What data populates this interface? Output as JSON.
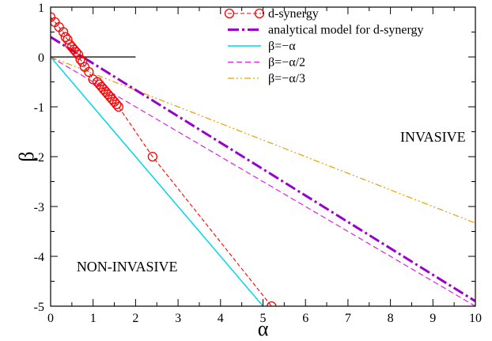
{
  "chart_data": {
    "type": "line",
    "xlabel": "α",
    "ylabel": "β",
    "xlim": [
      0,
      10
    ],
    "ylim": [
      -5,
      1
    ],
    "x_ticks": [
      0,
      1,
      2,
      3,
      4,
      5,
      6,
      7,
      8,
      9,
      10
    ],
    "y_ticks": [
      1,
      0,
      -1,
      -2,
      -3,
      -4,
      -5
    ],
    "grid": false,
    "legend_position": "top-right",
    "annotations": [
      {
        "text": "INVASIVE",
        "x": 9.0,
        "y": -1.7
      },
      {
        "text": "NON-INVASIVE",
        "x": 1.8,
        "y": -4.3
      }
    ],
    "reference_segment": {
      "x": [
        0,
        2
      ],
      "y": [
        0,
        0
      ],
      "color": "#000000"
    },
    "series": [
      {
        "name": "d-synergy",
        "kind": "markers-dashed",
        "color": "#ff0000",
        "x": [
          0.0,
          0.1,
          0.2,
          0.3,
          0.35,
          0.4,
          0.45,
          0.5,
          0.55,
          0.6,
          0.65,
          0.7,
          0.75,
          0.8,
          0.9,
          1.0,
          1.1,
          1.15,
          1.2,
          1.25,
          1.3,
          1.35,
          1.4,
          1.45,
          1.5,
          1.55,
          1.6,
          2.4,
          5.2
        ],
        "y": [
          0.8,
          0.7,
          0.6,
          0.5,
          0.4,
          0.35,
          0.25,
          0.2,
          0.15,
          0.1,
          0.05,
          -0.05,
          -0.1,
          -0.2,
          -0.3,
          -0.45,
          -0.5,
          -0.55,
          -0.6,
          -0.65,
          -0.7,
          -0.75,
          -0.8,
          -0.85,
          -0.9,
          -0.95,
          -1.0,
          -2.0,
          -5.0
        ]
      },
      {
        "name": "analytical model for d-synergy",
        "kind": "dash-dot-thick",
        "color": "#9900cc",
        "x": [
          0,
          10
        ],
        "y": [
          0.4,
          -4.9
        ]
      },
      {
        "name": "β=−α",
        "kind": "solid",
        "color": "#00d7e8",
        "x": [
          0,
          5
        ],
        "y": [
          0,
          -5
        ]
      },
      {
        "name": "β=−α/2",
        "kind": "dashed",
        "color": "#e020e0",
        "x": [
          0,
          10
        ],
        "y": [
          0,
          -5
        ]
      },
      {
        "name": "β=−α/3",
        "kind": "dash-dot-dot",
        "color": "#e8a000",
        "x": [
          0,
          10
        ],
        "y": [
          0,
          -3.333
        ]
      }
    ]
  }
}
